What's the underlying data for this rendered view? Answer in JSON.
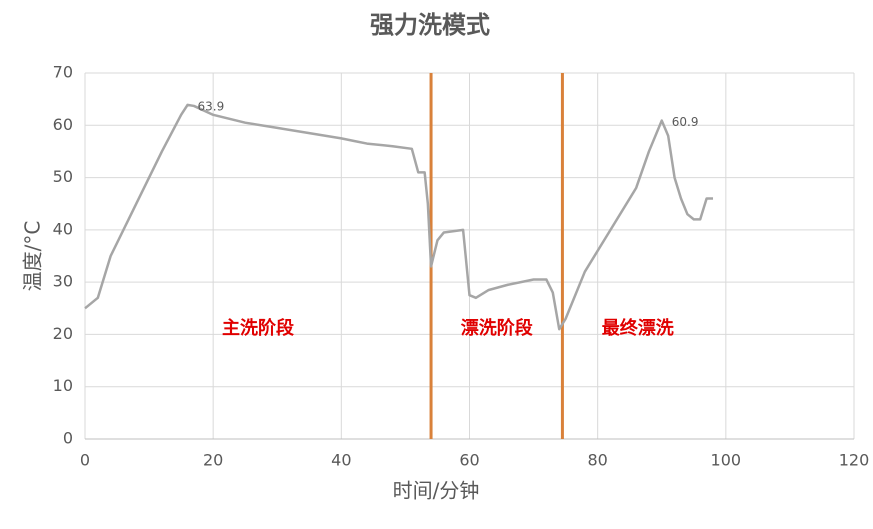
{
  "chart_data": {
    "type": "line",
    "title": "强力洗模式",
    "x_label": "时间/分钟",
    "y_label": "温度/°C",
    "x": [
      0,
      2,
      4,
      8,
      12,
      15,
      16,
      17,
      20,
      25,
      30,
      35,
      40,
      42,
      44,
      48,
      51,
      52,
      53,
      53.5,
      54,
      55,
      56,
      59,
      60,
      61,
      63,
      66,
      70,
      72,
      73,
      74,
      75,
      78,
      82,
      86,
      88,
      90,
      91,
      92,
      93,
      94,
      95,
      96,
      97,
      98
    ],
    "series": [
      {
        "name": "温度",
        "color": "#a6a6a6",
        "values": [
          25,
          27,
          35,
          45,
          55,
          62,
          63.9,
          63.7,
          62,
          60.5,
          59.5,
          58.5,
          57.5,
          57,
          56.5,
          56,
          55.5,
          51,
          51,
          45,
          33,
          38,
          39.5,
          40,
          27.5,
          27,
          28.5,
          29.5,
          30.5,
          30.5,
          28,
          21,
          23,
          32,
          40,
          48,
          55,
          60.9,
          58,
          50,
          46,
          43,
          42,
          42,
          46,
          46
        ],
        "value_labels": [
          null,
          null,
          null,
          null,
          null,
          null,
          "63.9",
          null,
          null,
          null,
          null,
          null,
          null,
          null,
          null,
          null,
          null,
          null,
          null,
          null,
          null,
          null,
          null,
          null,
          null,
          null,
          null,
          null,
          null,
          null,
          null,
          null,
          null,
          null,
          null,
          null,
          null,
          "60.9",
          null,
          null,
          null,
          null,
          null,
          null,
          null,
          null
        ]
      }
    ],
    "regions": [
      {
        "label": "主洗阶段",
        "start": 0,
        "end": 54
      },
      {
        "label": "漂洗阶段",
        "start": 54,
        "end": 74.5
      },
      {
        "label": "最终漂洗",
        "start": 74.5,
        "end": 98
      }
    ],
    "divider_color": "#d9813a",
    "region_label_color": "#e00000",
    "xlim": [
      0,
      120
    ],
    "xticks": [
      0,
      20,
      40,
      60,
      80,
      100,
      120
    ],
    "ylim": [
      0,
      70
    ],
    "yticks": [
      0,
      10,
      20,
      30,
      40,
      50,
      60,
      70
    ],
    "grid": true
  }
}
